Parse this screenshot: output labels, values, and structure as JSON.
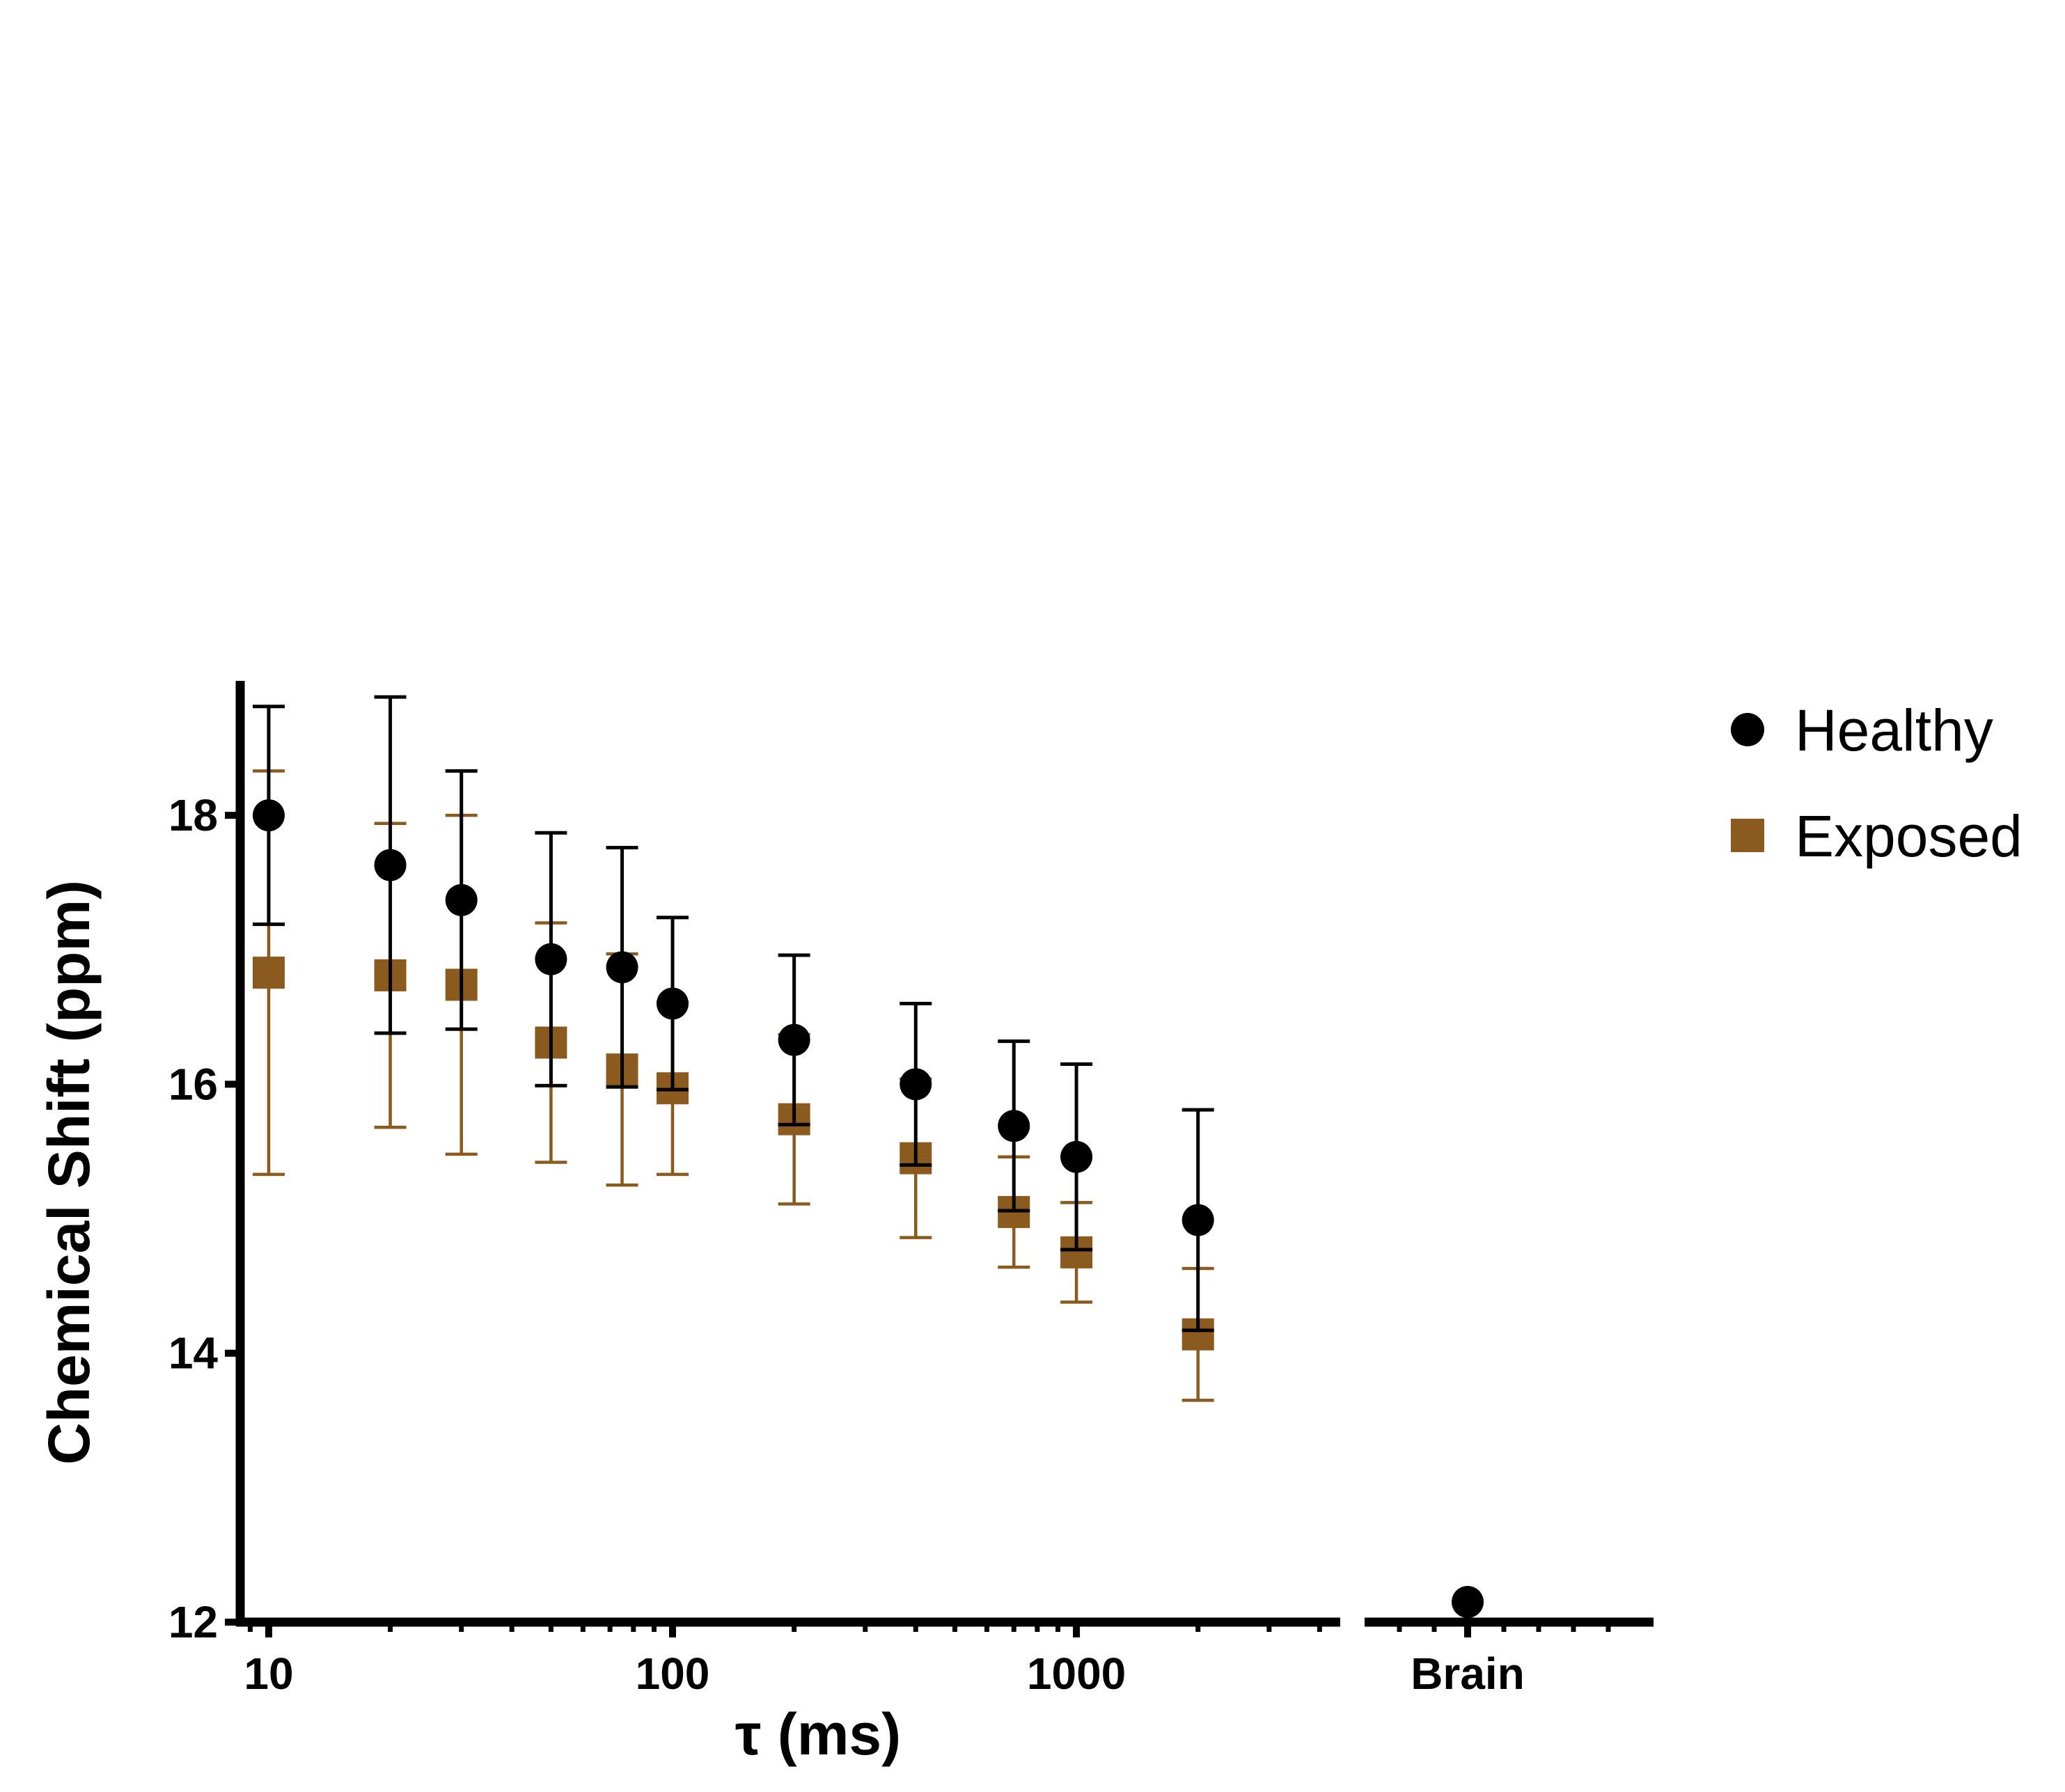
{
  "chart_data": {
    "type": "scatter",
    "title": "",
    "xlabel": "τ (ms)",
    "ylabel": "Chemical Shift  (ppm)",
    "x_scale": "log",
    "xlim": [
      8.5,
      4500
    ],
    "ylim": [
      12,
      19
    ],
    "x_ticks": [
      10,
      100,
      1000
    ],
    "x_tick_labels": [
      "10",
      "100",
      "1000"
    ],
    "y_ticks": [
      12,
      14,
      16,
      18
    ],
    "y_tick_labels": [
      "12",
      "14",
      "16",
      "18"
    ],
    "category_axis": {
      "label": "Brain",
      "healthy_value": 12.15
    },
    "legend_position": "right",
    "colors": {
      "Healthy": "#000000",
      "Exposed": "#8B5A1E"
    },
    "series": [
      {
        "name": "Healthy",
        "marker": "circle",
        "x": [
          10,
          20,
          30,
          50,
          75,
          100,
          200,
          400,
          700,
          1000,
          2000
        ],
        "y": [
          18.0,
          17.63,
          17.37,
          16.93,
          16.87,
          16.6,
          16.33,
          16.0,
          15.69,
          15.46,
          14.99
        ],
        "err": [
          0.81,
          1.25,
          0.96,
          0.94,
          0.89,
          0.64,
          0.63,
          0.6,
          0.63,
          0.69,
          0.82
        ]
      },
      {
        "name": "Exposed",
        "marker": "square",
        "x": [
          10,
          20,
          30,
          50,
          75,
          100,
          200,
          400,
          700,
          1000,
          2000
        ],
        "y": [
          16.83,
          16.81,
          16.74,
          16.31,
          16.11,
          15.97,
          15.74,
          15.45,
          15.05,
          14.75,
          14.14
        ],
        "err": [
          1.5,
          1.13,
          1.26,
          0.89,
          0.86,
          0.64,
          0.63,
          0.59,
          0.41,
          0.37,
          0.49
        ]
      }
    ],
    "legend": [
      {
        "name": "Healthy",
        "marker": "circle"
      },
      {
        "name": "Exposed",
        "marker": "square"
      }
    ]
  }
}
